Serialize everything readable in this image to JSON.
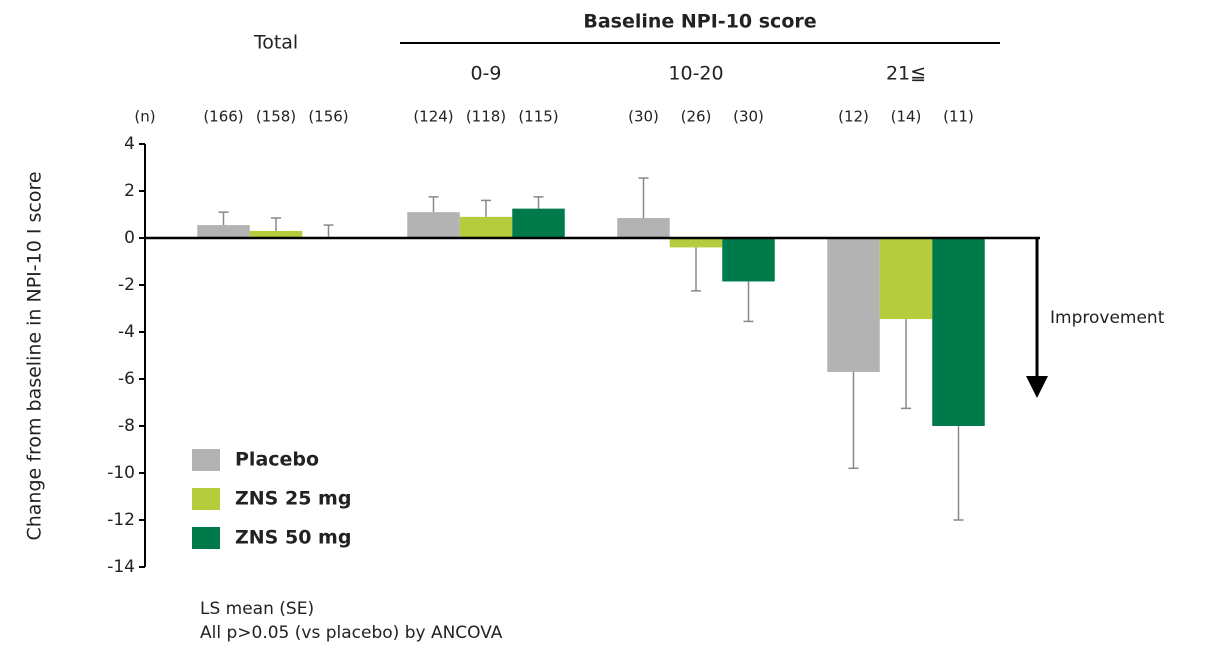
{
  "chart_data": {
    "type": "bar",
    "group_title": "Baseline NPI-10 score",
    "y_label": "Change from baseline in NPI-10 I score",
    "n_title": "(n)",
    "categories": [
      "Total",
      "0-9",
      "10-20",
      "21≦"
    ],
    "series": [
      {
        "name": "Placebo",
        "color": "#b3b3b3",
        "values": [
          0.55,
          1.1,
          0.85,
          -5.7
        ],
        "errors": [
          0.55,
          0.65,
          1.7,
          4.1
        ],
        "n_labels": [
          "(166)",
          "(124)",
          "(30)",
          "(12)"
        ]
      },
      {
        "name": "ZNS 25 mg",
        "color": "#b5cc3c",
        "values": [
          0.3,
          0.9,
          -0.4,
          -3.45
        ],
        "errors": [
          0.55,
          0.7,
          1.85,
          3.8
        ],
        "n_labels": [
          "(158)",
          "(118)",
          "(26)",
          "(14)"
        ]
      },
      {
        "name": "ZNS 50 mg",
        "color": "#007a4b",
        "values": [
          0,
          1.25,
          -1.85,
          -8.0
        ],
        "errors": [
          0.55,
          0.5,
          1.7,
          4.0
        ],
        "n_labels": [
          "(156)",
          "(115)",
          "(30)",
          "(11)"
        ]
      }
    ],
    "ylim": [
      -14,
      4
    ],
    "yticks": [
      -14,
      -12,
      -10,
      -8,
      -6,
      -4,
      -2,
      0,
      2,
      4
    ],
    "annotation": "Improvement",
    "notes": [
      "LS mean (SE)",
      "All p>0.05 (vs placebo) by ANCOVA"
    ]
  }
}
